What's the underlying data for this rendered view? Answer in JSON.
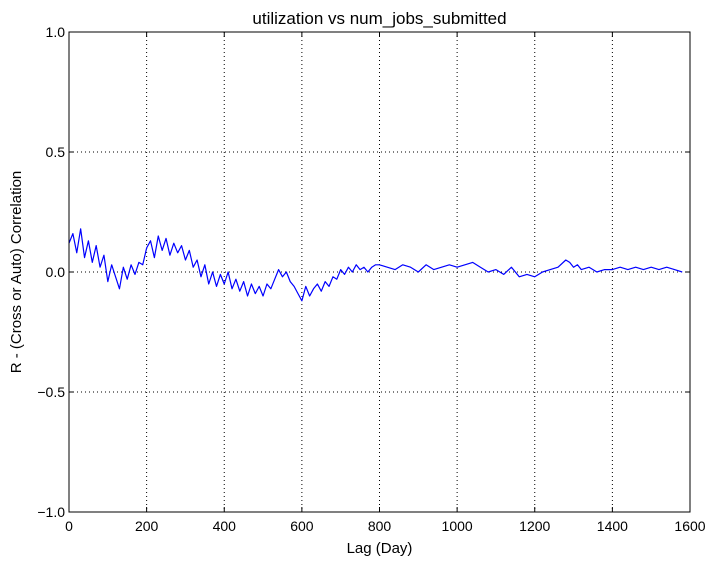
{
  "chart_data": {
    "type": "line",
    "title": "utilization vs num_jobs_submitted",
    "xlabel": "Lag (Day)",
    "ylabel": "R - (Cross or Auto) Correlation",
    "xlim": [
      0,
      1600
    ],
    "ylim": [
      -1.0,
      1.0
    ],
    "grid": true,
    "x_ticks": [
      0,
      200,
      400,
      600,
      800,
      1000,
      1200,
      1400,
      1600
    ],
    "x_tick_labels": [
      "0",
      "200",
      "400",
      "600",
      "800",
      "1000",
      "1200",
      "1400",
      "1600"
    ],
    "y_ticks": [
      -1.0,
      -0.5,
      0.0,
      0.5,
      1.0
    ],
    "y_tick_labels": [
      "−1.0",
      "−0.5",
      "0.0",
      "0.5",
      "1.0"
    ],
    "series": [
      {
        "color": "#0000ff",
        "x": [
          0,
          10,
          20,
          30,
          40,
          50,
          60,
          70,
          80,
          90,
          100,
          110,
          120,
          130,
          140,
          150,
          160,
          170,
          180,
          190,
          200,
          210,
          220,
          230,
          240,
          250,
          260,
          270,
          280,
          290,
          300,
          310,
          320,
          330,
          340,
          350,
          360,
          370,
          380,
          390,
          400,
          410,
          420,
          430,
          440,
          450,
          460,
          470,
          480,
          490,
          500,
          510,
          520,
          530,
          540,
          550,
          560,
          570,
          580,
          590,
          600,
          610,
          620,
          630,
          640,
          650,
          660,
          670,
          680,
          690,
          700,
          710,
          720,
          730,
          740,
          750,
          760,
          770,
          780,
          790,
          800,
          820,
          840,
          860,
          880,
          900,
          920,
          940,
          960,
          980,
          1000,
          1020,
          1040,
          1060,
          1080,
          1100,
          1120,
          1140,
          1160,
          1180,
          1200,
          1220,
          1240,
          1260,
          1280,
          1290,
          1300,
          1310,
          1320,
          1340,
          1360,
          1380,
          1400,
          1420,
          1440,
          1460,
          1480,
          1500,
          1520,
          1540,
          1560,
          1580
        ],
        "values": [
          0.12,
          0.16,
          0.08,
          0.18,
          0.06,
          0.13,
          0.04,
          0.11,
          0.02,
          0.07,
          -0.04,
          0.03,
          -0.02,
          -0.07,
          0.02,
          -0.03,
          0.03,
          -0.01,
          0.04,
          0.03,
          0.1,
          0.13,
          0.06,
          0.15,
          0.09,
          0.14,
          0.07,
          0.12,
          0.08,
          0.11,
          0.05,
          0.09,
          0.02,
          0.05,
          -0.02,
          0.03,
          -0.05,
          0.0,
          -0.06,
          -0.01,
          -0.05,
          0.0,
          -0.07,
          -0.03,
          -0.08,
          -0.04,
          -0.1,
          -0.05,
          -0.09,
          -0.06,
          -0.1,
          -0.05,
          -0.07,
          -0.03,
          0.01,
          -0.02,
          0.0,
          -0.04,
          -0.06,
          -0.09,
          -0.12,
          -0.06,
          -0.1,
          -0.07,
          -0.05,
          -0.08,
          -0.04,
          -0.06,
          -0.02,
          -0.03,
          0.01,
          -0.01,
          0.02,
          0.0,
          0.03,
          0.01,
          0.02,
          0.0,
          0.02,
          0.03,
          0.03,
          0.02,
          0.01,
          0.03,
          0.02,
          0.0,
          0.03,
          0.01,
          0.02,
          0.03,
          0.02,
          0.03,
          0.04,
          0.02,
          0.0,
          0.01,
          -0.01,
          0.02,
          -0.02,
          -0.01,
          -0.02,
          0.0,
          0.01,
          0.02,
          0.05,
          0.04,
          0.02,
          0.03,
          0.01,
          0.02,
          0.0,
          0.01,
          0.01,
          0.02,
          0.01,
          0.02,
          0.01,
          0.02,
          0.01,
          0.02,
          0.01,
          0.0
        ]
      }
    ]
  }
}
